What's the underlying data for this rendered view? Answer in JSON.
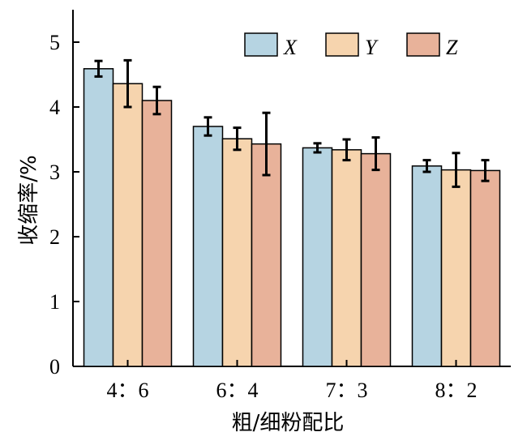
{
  "chart_data": {
    "type": "bar",
    "title": "",
    "xlabel": "粗/细粉配比",
    "ylabel": "收缩率/%",
    "categories": [
      "4：6",
      "6：4",
      "7：3",
      "8：2"
    ],
    "ylim": [
      0,
      5.5
    ],
    "yticks": [
      0,
      1,
      2,
      3,
      4,
      5
    ],
    "grid": false,
    "legend_position": "top-right",
    "series": [
      {
        "name": "X",
        "color": "#b6d4e2",
        "values": [
          4.59,
          3.7,
          3.37,
          3.09
        ],
        "errors": [
          0.12,
          0.14,
          0.07,
          0.09
        ]
      },
      {
        "name": "Y",
        "color": "#f6d4ae",
        "values": [
          4.36,
          3.51,
          3.34,
          3.03
        ],
        "errors": [
          0.36,
          0.17,
          0.16,
          0.26
        ]
      },
      {
        "name": "Z",
        "color": "#e8b29a",
        "values": [
          4.1,
          3.43,
          3.28,
          3.02
        ],
        "errors": [
          0.21,
          0.48,
          0.25,
          0.16
        ]
      }
    ]
  }
}
